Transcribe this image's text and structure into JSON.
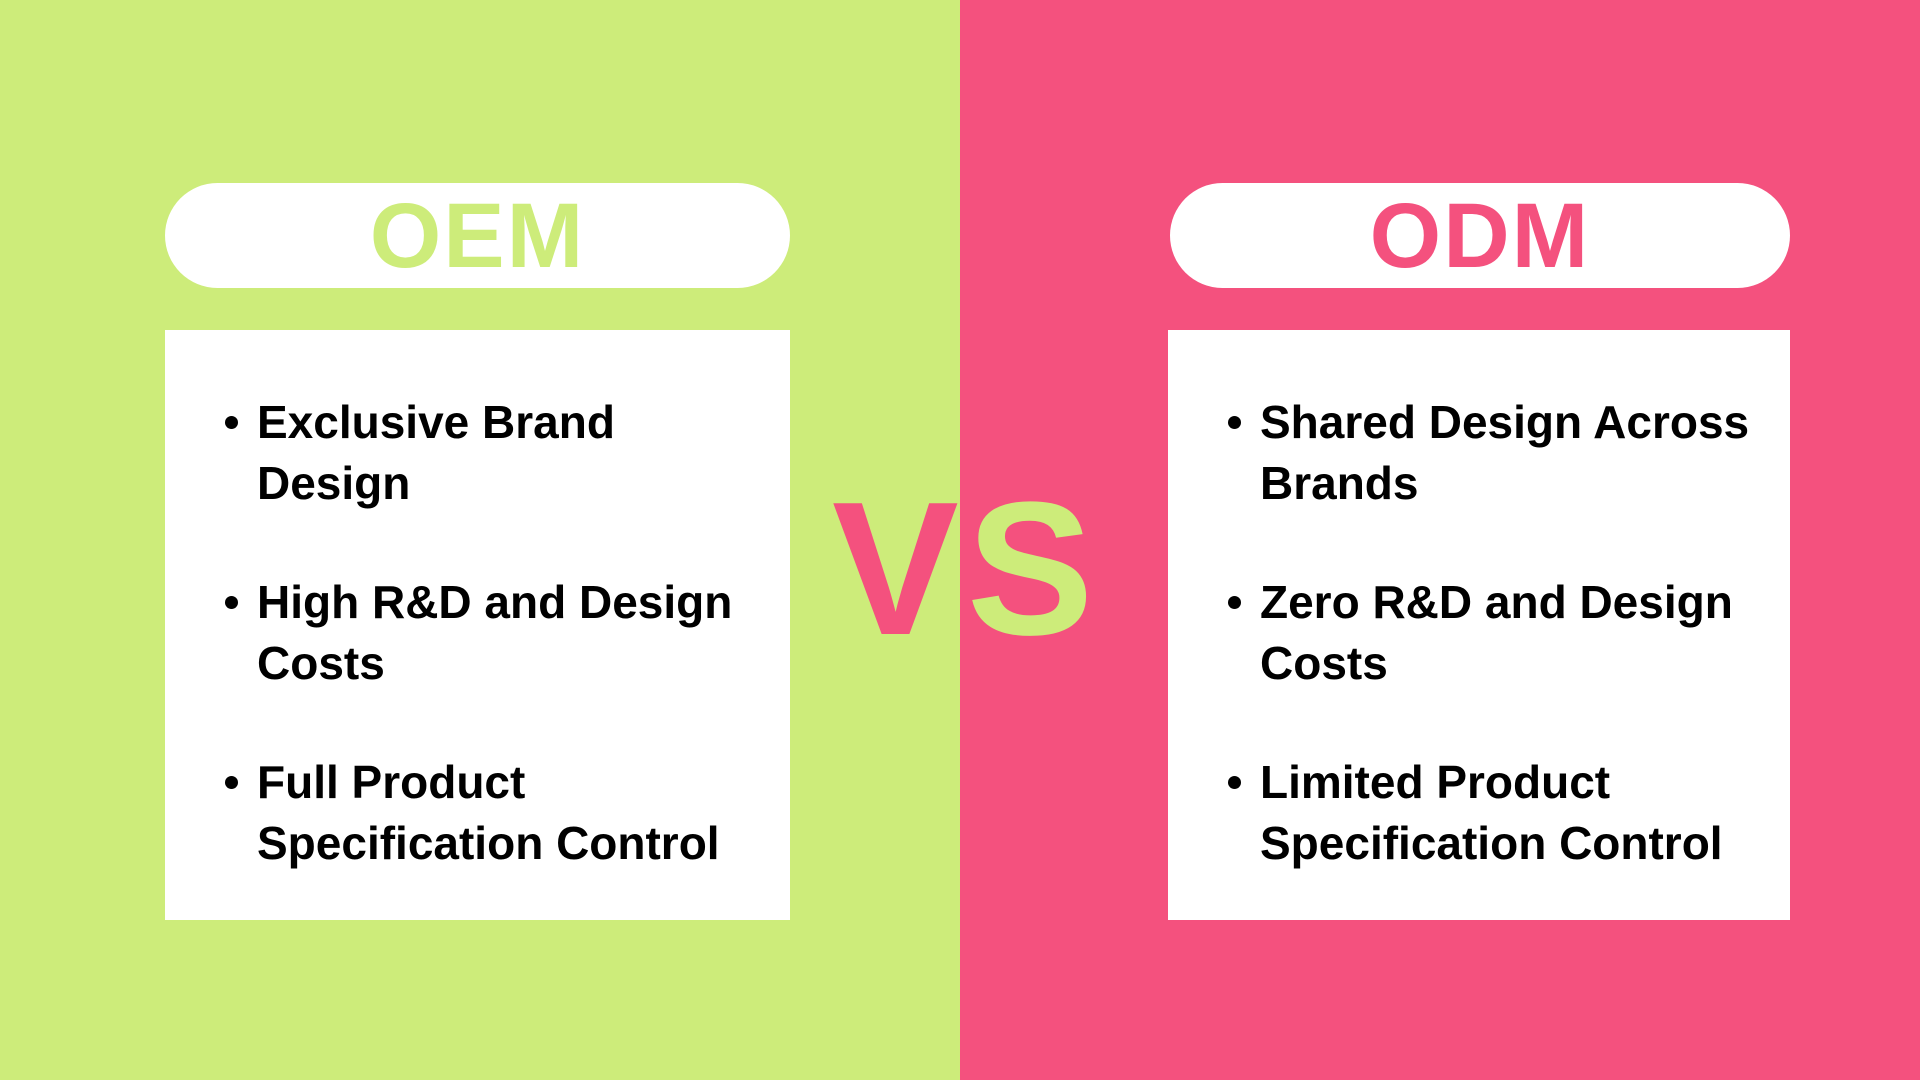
{
  "left_panel": {
    "title": "OEM",
    "bullets": [
      "Exclusive Brand\nDesign",
      "High R&D and Design\nCosts",
      "Full Product\nSpecification Control"
    ]
  },
  "right_panel": {
    "title": "ODM",
    "bullets": [
      "Shared Design Across\nBrands",
      "Zero R&D and Design\nCosts",
      "Limited Product\nSpecification Control"
    ]
  },
  "divider": {
    "left_letter": "V",
    "right_letter": "S"
  },
  "colors": {
    "lime": "#cdec7a",
    "pink": "#f4517e",
    "card_bg": "#ffffff",
    "text": "#000000"
  }
}
